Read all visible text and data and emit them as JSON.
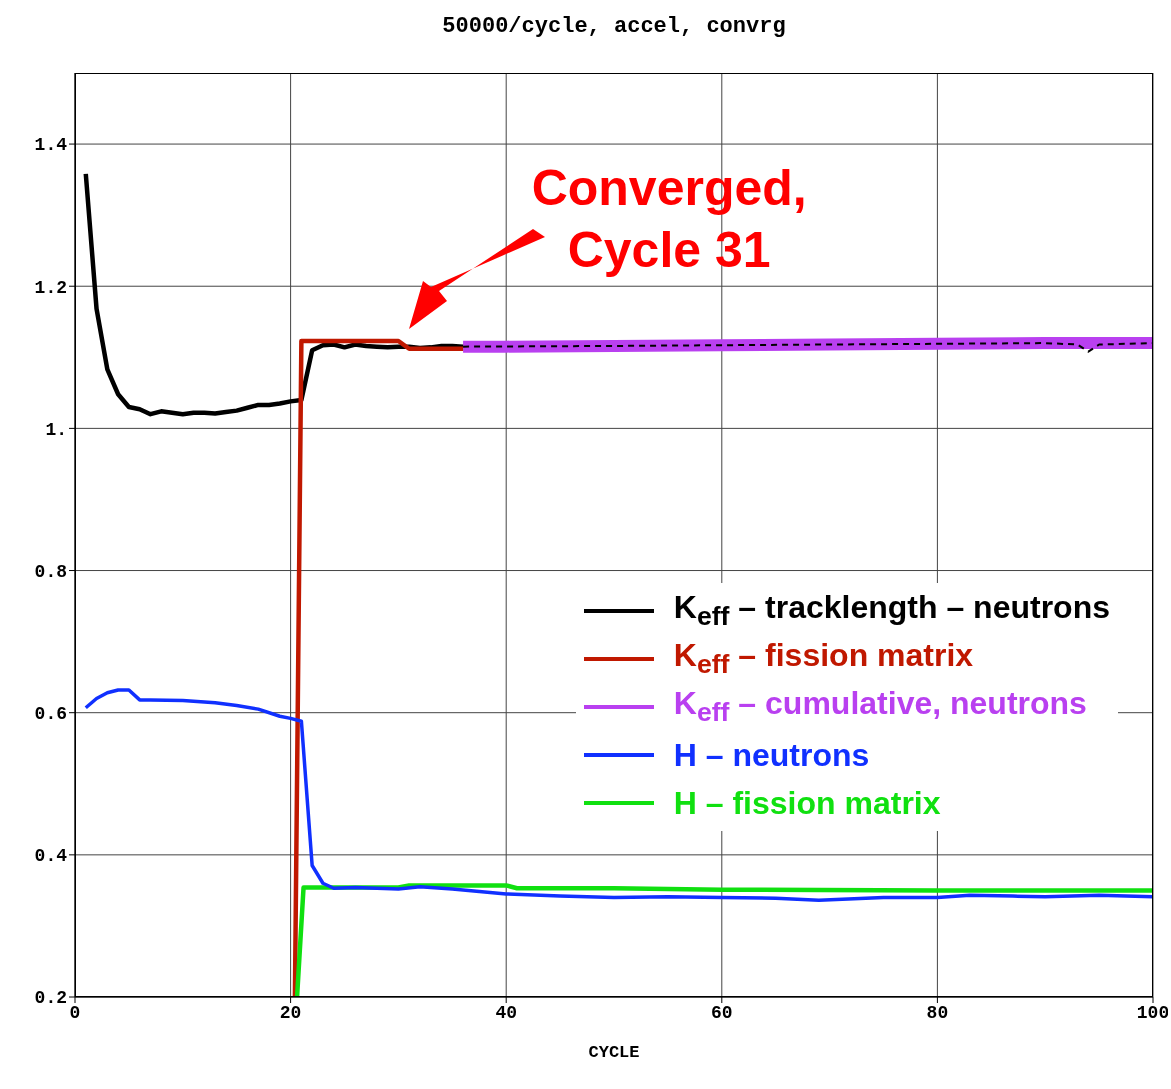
{
  "chart_data": {
    "type": "line",
    "title": "50000/cycle, accel, convrg",
    "xlabel": "CYCLE",
    "xlim": [
      0,
      100
    ],
    "xticks": [
      0,
      20,
      40,
      60,
      80,
      100
    ],
    "ylim": [
      0.2,
      1.5
    ],
    "yticks": [
      {
        "value": 0.2,
        "label": "0.2"
      },
      {
        "value": 0.4,
        "label": "0.4"
      },
      {
        "value": 0.6,
        "label": "0.6"
      },
      {
        "value": 0.8,
        "label": "0.8"
      },
      {
        "value": 1,
        "label": "1."
      },
      {
        "value": 1.2,
        "label": "1.2"
      },
      {
        "value": 1.4,
        "label": "1.4"
      }
    ],
    "grid": true,
    "legend": "bottom right",
    "marker": "none",
    "annotations": [
      {
        "text": "Converged,\nCycle 31",
        "x": 31,
        "y": 1.115
      }
    ],
    "series": [
      {
        "name": "K$_{eff}$ – tracklength – neutrons",
        "color": "#000000",
        "x": [
          1,
          2,
          3,
          4,
          5,
          6,
          7,
          8,
          9,
          10,
          11,
          12,
          13,
          14,
          15,
          16,
          17,
          18,
          19,
          20,
          21,
          22,
          23,
          24,
          25,
          26,
          27,
          28,
          29,
          30,
          31,
          32,
          33,
          34,
          35,
          36
        ],
        "values": [
          1.358,
          1.168,
          1.083,
          1.048,
          1.03,
          1.027,
          1.02,
          1.024,
          1.022,
          1.02,
          1.022,
          1.022,
          1.021,
          1.023,
          1.025,
          1.029,
          1.033,
          1.033,
          1.035,
          1.038,
          1.04,
          1.11,
          1.117,
          1.118,
          1.114,
          1.118,
          1.116,
          1.115,
          1.114,
          1.115,
          1.115,
          1.113,
          1.114,
          1.116,
          1.116,
          1.115
        ]
      },
      {
        "name": "K$_{eff}$ – fission matrix",
        "color": "#c01800",
        "x": [
          20.4,
          21,
          30,
          31,
          36
        ],
        "values": [
          0.2,
          1.123,
          1.123,
          1.112,
          1.112
        ]
      },
      {
        "name": "K$_{eff}$ – cumulative, neutrons",
        "color": "#b940f0",
        "x": [
          36,
          40,
          50,
          60,
          70,
          80,
          90,
          100
        ],
        "values": [
          1.115,
          1.115,
          1.116,
          1.117,
          1.118,
          1.119,
          1.12,
          1.12
        ]
      },
      {
        "color": "#000000",
        "line_style": "dashed",
        "x": [
          36,
          50,
          60,
          70,
          80,
          90,
          93,
          94,
          95,
          100
        ],
        "values": [
          1.115,
          1.116,
          1.117,
          1.118,
          1.119,
          1.12,
          1.118,
          1.108,
          1.118,
          1.12
        ]
      },
      {
        "name": "H – neutrons",
        "color": "#1030ff",
        "x": [
          1,
          2,
          3,
          4,
          5,
          6,
          7,
          10,
          13,
          15,
          17,
          19,
          20,
          21,
          22,
          23,
          24,
          26,
          30,
          32,
          35,
          40,
          45,
          50,
          55,
          60,
          65,
          69,
          75,
          80,
          83,
          87,
          90,
          95,
          100
        ],
        "values": [
          0.607,
          0.62,
          0.628,
          0.632,
          0.632,
          0.618,
          0.618,
          0.617,
          0.614,
          0.61,
          0.605,
          0.595,
          0.592,
          0.588,
          0.385,
          0.36,
          0.353,
          0.354,
          0.352,
          0.355,
          0.352,
          0.345,
          0.342,
          0.34,
          0.341,
          0.34,
          0.339,
          0.336,
          0.34,
          0.34,
          0.343,
          0.342,
          0.341,
          0.343,
          0.341
        ]
      },
      {
        "name": "H – fission matrix",
        "color": "#10e010",
        "x": [
          20.6,
          21.2,
          30,
          31,
          40,
          41,
          50,
          60,
          80,
          100
        ],
        "values": [
          0.2,
          0.354,
          0.354,
          0.357,
          0.357,
          0.353,
          0.353,
          0.351,
          0.35,
          0.35
        ]
      }
    ]
  }
}
